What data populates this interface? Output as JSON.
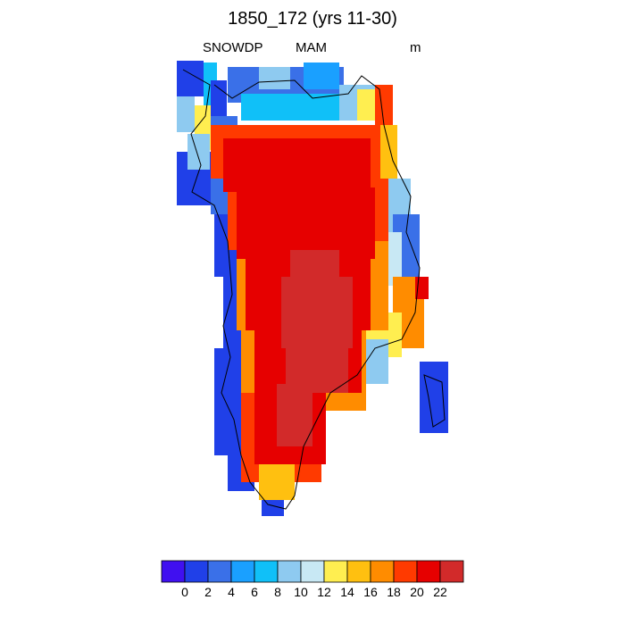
{
  "title": "1850_172 (yrs 11-30)",
  "subtitle": {
    "variable": "SNOWDP",
    "season": "MAM",
    "units": "m"
  },
  "colorbar": {
    "colors": [
      "#4010f0",
      "#2040e8",
      "#3a70e8",
      "#1aa0ff",
      "#10c0f8",
      "#8ecaf0",
      "#c8e8f4",
      "#ffee50",
      "#ffc010",
      "#ff8c00",
      "#ff3a00",
      "#e60000",
      "#d22a2a"
    ],
    "ticks": [
      "0",
      "2",
      "4",
      "6",
      "8",
      "10",
      "12",
      "14",
      "16",
      "18",
      "20",
      "22"
    ]
  },
  "map": {
    "region": "Greenland"
  }
}
